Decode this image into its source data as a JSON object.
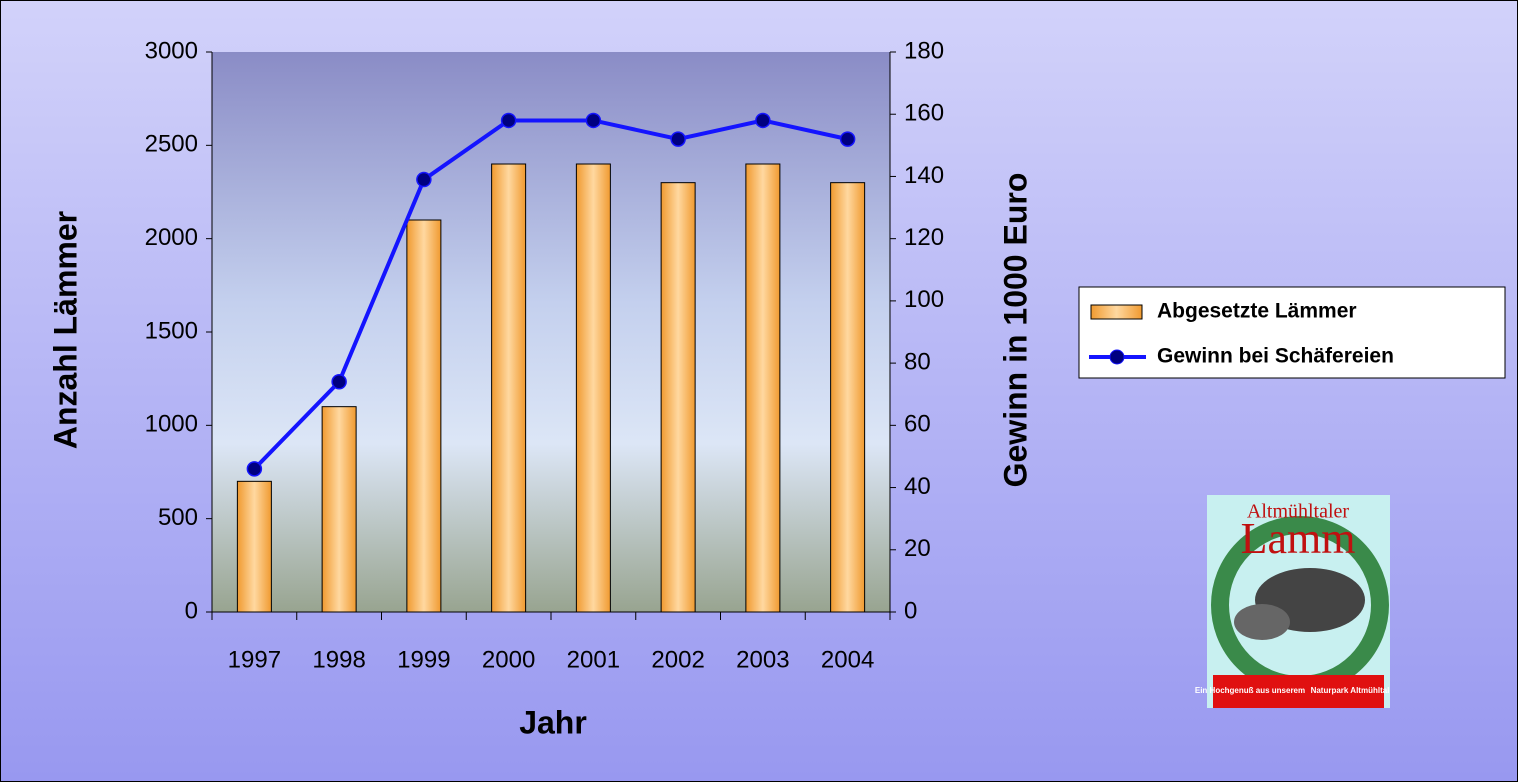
{
  "chart_data": {
    "type": "bar-line",
    "x_label": "Jahr",
    "y_label": "Anzahl Lämmer",
    "y2_label": "Gewinn in 1000 Euro",
    "categories": [
      "1997",
      "1998",
      "1999",
      "2000",
      "2001",
      "2002",
      "2003",
      "2004"
    ],
    "series": [
      {
        "name": "Abgesetzte Lämmer",
        "type": "bar",
        "color": "#ffb050",
        "values": [
          700,
          1100,
          2100,
          2400,
          2400,
          2300,
          2400,
          2300
        ]
      },
      {
        "name": "Gewinn bei Schäfereien",
        "type": "line",
        "axis": "y2",
        "color": "#1414ff",
        "values": [
          46,
          74,
          139,
          158,
          158,
          152,
          158,
          152
        ]
      }
    ],
    "ylim": [
      0,
      3000
    ],
    "yticks": [
      0,
      500,
      1000,
      1500,
      2000,
      2500,
      3000
    ],
    "y2lim": [
      0,
      180
    ],
    "y2ticks": [
      0,
      20,
      40,
      60,
      80,
      100,
      120,
      140,
      160,
      180
    ],
    "legend": "right"
  },
  "logo": {
    "top": "Altmühltaler",
    "main": "Lamm",
    "left_tag": "Ein Hochgenuß aus unserem",
    "right_tag": "Naturpark Altmühltal"
  }
}
